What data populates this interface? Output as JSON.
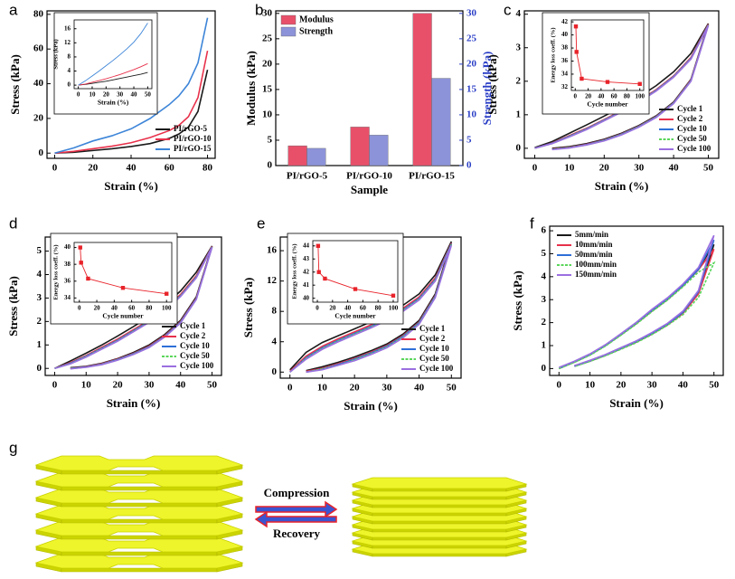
{
  "chart_data": [
    {
      "type": "line",
      "panel_label": "a",
      "xlabel": "Strain (%)",
      "ylabel": "Stress (kPa)",
      "xlim": [
        -4,
        84
      ],
      "ylim": [
        -3,
        82
      ],
      "xticks": [
        0,
        20,
        40,
        60,
        80
      ],
      "yticks": [
        0,
        20,
        40,
        60,
        80
      ],
      "legend": "lower right",
      "x": [
        0,
        10,
        20,
        30,
        40,
        50,
        60,
        65,
        70,
        75,
        80
      ],
      "series": [
        {
          "name": "PI/rGO-5",
          "color": "#1a1a1a",
          "values": [
            0,
            0.5,
            1.5,
            2.5,
            3.8,
            5.5,
            8.5,
            11,
            15,
            24,
            48
          ]
        },
        {
          "name": "PI/rGO-10",
          "color": "#e8314b",
          "values": [
            0,
            1,
            2.5,
            4,
            6,
            9,
            13,
            16,
            21,
            32,
            59
          ]
        },
        {
          "name": "PI/rGO-15",
          "color": "#3d85d8",
          "values": [
            0,
            3,
            7,
            10,
            14,
            20,
            28,
            33,
            40,
            52,
            78
          ]
        }
      ],
      "inset": {
        "type": "line",
        "xlabel": "Strain (%)",
        "ylabel": "Stress (kPa)",
        "xlim": [
          -3,
          53
        ],
        "ylim": [
          -1,
          18.5
        ],
        "xticks": [
          0,
          10,
          20,
          30,
          40,
          50
        ],
        "yticks": [
          0,
          4,
          8,
          12,
          16
        ],
        "x": [
          0,
          5,
          10,
          15,
          20,
          25,
          30,
          35,
          40,
          45,
          50
        ],
        "series": [
          {
            "color": "#1a1a1a",
            "values": [
              0,
              0.2,
              0.5,
              0.8,
              1.1,
              1.5,
              1.9,
              2.3,
              2.7,
              3.1,
              3.6
            ]
          },
          {
            "color": "#e8314b",
            "values": [
              0,
              0.3,
              0.8,
              1.3,
              1.8,
              2.4,
              3.0,
              3.7,
              4.4,
              5.2,
              6.1
            ]
          },
          {
            "color": "#3d85d8",
            "values": [
              0,
              1.2,
              2.6,
              4.0,
              5.5,
              7.0,
              8.6,
              10.3,
              12.2,
              14.6,
              17.6
            ]
          }
        ]
      }
    },
    {
      "type": "bar",
      "panel_label": "b",
      "xlabel": "Sample",
      "ylabel": "Modulus (kPa)",
      "y2label": "Strength (kPa)",
      "y2_color": "#2b3fc6",
      "legend": "upper left",
      "categories": [
        "PI/rGO-5",
        "PI/rGO-10",
        "PI/rGO-15"
      ],
      "ylim": [
        0,
        30.5
      ],
      "yticks": [
        0,
        5,
        10,
        15,
        20,
        25,
        30
      ],
      "y2lim": [
        0,
        30.5
      ],
      "y2ticks": [
        0,
        5,
        10,
        15,
        20,
        25,
        30
      ],
      "series": [
        {
          "name": "Modulus",
          "color": "#e8506a",
          "values": [
            3.9,
            7.6,
            30.0
          ]
        },
        {
          "name": "Strength",
          "color": "#8d93d8",
          "axis": "y2",
          "values": [
            3.4,
            6.0,
            17.2
          ]
        }
      ]
    },
    {
      "type": "line",
      "panel_label": "c",
      "xlabel": "Strain (%)",
      "ylabel": "Stress (kPa)",
      "xlim": [
        -3,
        53
      ],
      "ylim": [
        -0.3,
        4.1
      ],
      "xticks": [
        0,
        10,
        20,
        30,
        40,
        50
      ],
      "yticks": [
        0,
        1,
        2,
        3,
        4
      ],
      "legend": "lower right",
      "x": [
        0,
        5,
        10,
        15,
        20,
        25,
        30,
        35,
        40,
        45,
        50,
        45,
        40,
        35,
        30,
        25,
        20,
        15,
        10,
        5
      ],
      "series": [
        {
          "name": "Cycle 1",
          "color": "#1a1a1a",
          "values": [
            0.02,
            0.2,
            0.45,
            0.7,
            0.96,
            1.23,
            1.53,
            1.87,
            2.28,
            2.83,
            3.72,
            2.06,
            1.38,
            0.97,
            0.68,
            0.45,
            0.27,
            0.14,
            0.05,
            0
          ]
        },
        {
          "name": "Cycle 2",
          "color": "#e8314b",
          "values": [
            0,
            0.16,
            0.38,
            0.6,
            0.86,
            1.12,
            1.42,
            1.75,
            2.16,
            2.71,
            3.7,
            2.04,
            1.36,
            0.95,
            0.66,
            0.43,
            0.25,
            0.12,
            0.03,
            -0.02
          ]
        },
        {
          "name": "Cycle 10",
          "color": "#2e6fd8",
          "values": [
            0,
            0.15,
            0.36,
            0.58,
            0.84,
            1.1,
            1.4,
            1.73,
            2.14,
            2.68,
            3.68,
            2.02,
            1.35,
            0.94,
            0.65,
            0.42,
            0.24,
            0.11,
            0.02,
            -0.03
          ]
        },
        {
          "name": "Cycle 50",
          "color": "#5ad65a",
          "dashed": true,
          "values": [
            0,
            0.14,
            0.35,
            0.57,
            0.83,
            1.09,
            1.39,
            1.72,
            2.13,
            2.67,
            3.67,
            2.01,
            1.34,
            0.93,
            0.64,
            0.41,
            0.23,
            0.1,
            0.02,
            -0.03
          ]
        },
        {
          "name": "Cycle 100",
          "color": "#9b6fe0",
          "values": [
            0,
            0.14,
            0.34,
            0.56,
            0.82,
            1.08,
            1.38,
            1.71,
            2.12,
            2.66,
            3.66,
            2.0,
            1.33,
            0.92,
            0.63,
            0.4,
            0.22,
            0.1,
            0.01,
            -0.04
          ]
        }
      ],
      "inset": {
        "type": "line",
        "xlabel": "Cycle number",
        "ylabel": "Energy loss coeff. (%)",
        "markers": true,
        "xlim": [
          -6,
          106
        ],
        "ylim": [
          31.5,
          42.3
        ],
        "xticks": [
          0,
          20,
          40,
          60,
          80,
          100
        ],
        "yticks": [
          32,
          34,
          36,
          38,
          40,
          42
        ],
        "x": [
          1,
          2,
          10,
          50,
          100
        ],
        "series": [
          {
            "color": "#e8232a",
            "values": [
              41.3,
              37.4,
              33.3,
              32.8,
              32.5
            ]
          }
        ]
      }
    },
    {
      "type": "line",
      "panel_label": "d",
      "xlabel": "Strain (%)",
      "ylabel": "Stress (kPa)",
      "xlim": [
        -3,
        53
      ],
      "ylim": [
        -0.3,
        5.6
      ],
      "xticks": [
        0,
        10,
        20,
        30,
        40,
        50
      ],
      "yticks": [
        0,
        1,
        2,
        3,
        4,
        5
      ],
      "legend": "lower right",
      "x": [
        0,
        5,
        10,
        15,
        20,
        25,
        30,
        35,
        40,
        45,
        50,
        45,
        40,
        35,
        30,
        25,
        20,
        15,
        10,
        5
      ],
      "series": [
        {
          "name": "Cycle 1",
          "color": "#1a1a1a",
          "values": [
            0,
            0.32,
            0.65,
            1.0,
            1.38,
            1.78,
            2.2,
            2.7,
            3.3,
            4.1,
            5.22,
            3.05,
            2.05,
            1.45,
            1.0,
            0.68,
            0.42,
            0.22,
            0.09,
            0.03
          ]
        },
        {
          "name": "Cycle 2",
          "color": "#e8314b",
          "values": [
            0,
            0.25,
            0.55,
            0.9,
            1.25,
            1.65,
            2.05,
            2.55,
            3.15,
            3.95,
            5.2,
            3.0,
            2.0,
            1.4,
            0.95,
            0.64,
            0.4,
            0.2,
            0.07,
            0.01
          ]
        },
        {
          "name": "Cycle 10",
          "color": "#2e6fd8",
          "values": [
            0,
            0.22,
            0.52,
            0.86,
            1.2,
            1.6,
            2.0,
            2.5,
            3.1,
            3.9,
            5.18,
            2.97,
            1.97,
            1.37,
            0.92,
            0.62,
            0.38,
            0.18,
            0.06,
            0
          ]
        },
        {
          "name": "Cycle 50",
          "color": "#5ad65a",
          "dashed": true,
          "values": [
            0,
            0.2,
            0.5,
            0.84,
            1.18,
            1.58,
            1.98,
            2.48,
            3.08,
            3.88,
            5.17,
            2.95,
            1.95,
            1.35,
            0.9,
            0.6,
            0.36,
            0.17,
            0.05,
            -0.01
          ]
        },
        {
          "name": "Cycle 100",
          "color": "#9b6fe0",
          "values": [
            0,
            0.19,
            0.48,
            0.82,
            1.16,
            1.56,
            1.96,
            2.46,
            3.06,
            3.86,
            5.16,
            2.94,
            1.94,
            1.34,
            0.89,
            0.59,
            0.35,
            0.16,
            0.05,
            -0.02
          ]
        }
      ],
      "inset": {
        "type": "line",
        "xlabel": "Cycle number",
        "ylabel": "Energy loss coeff. (%)",
        "markers": true,
        "xlim": [
          -6,
          106
        ],
        "ylim": [
          33.5,
          40.6
        ],
        "xticks": [
          0,
          20,
          40,
          60,
          80,
          100
        ],
        "yticks": [
          34,
          36,
          38,
          40
        ],
        "x": [
          1,
          2,
          10,
          50,
          100
        ],
        "series": [
          {
            "color": "#e8232a",
            "values": [
              40.0,
              38.2,
              36.3,
              35.2,
              34.5
            ]
          }
        ]
      }
    },
    {
      "type": "line",
      "panel_label": "e",
      "xlabel": "Strain (%)",
      "ylabel": "Stress (kPa)",
      "xlim": [
        -3,
        53
      ],
      "ylim": [
        -0.8,
        17.8
      ],
      "xticks": [
        0,
        10,
        20,
        30,
        40,
        50
      ],
      "yticks": [
        0,
        4,
        8,
        12,
        16
      ],
      "legend": "lower right",
      "x": [
        0,
        5,
        10,
        15,
        20,
        25,
        30,
        35,
        40,
        45,
        50,
        45,
        40,
        35,
        30,
        25,
        20,
        15,
        10,
        5
      ],
      "series": [
        {
          "name": "Cycle 1",
          "color": "#1a1a1a",
          "values": [
            0.3,
            2.6,
            3.9,
            4.8,
            5.7,
            6.6,
            7.6,
            8.8,
            10.3,
            12.8,
            17.2,
            10.3,
            6.8,
            5.0,
            3.7,
            2.8,
            2.0,
            1.3,
            0.7,
            0.2
          ]
        },
        {
          "name": "Cycle 2",
          "color": "#e8314b",
          "values": [
            0.1,
            2.1,
            3.4,
            4.4,
            5.3,
            6.2,
            7.2,
            8.4,
            9.9,
            12.4,
            17.0,
            10.1,
            6.6,
            4.8,
            3.5,
            2.6,
            1.8,
            1.1,
            0.5,
            0.1
          ]
        },
        {
          "name": "Cycle 10",
          "color": "#2e6fd8",
          "values": [
            0,
            1.9,
            3.2,
            4.2,
            5.1,
            6.0,
            7.0,
            8.2,
            9.7,
            12.2,
            16.9,
            10.0,
            6.5,
            4.7,
            3.4,
            2.5,
            1.7,
            1.0,
            0.4,
            0
          ]
        },
        {
          "name": "Cycle 50",
          "color": "#5ad65a",
          "dashed": true,
          "values": [
            0,
            1.8,
            3.1,
            4.1,
            5.0,
            5.9,
            6.9,
            8.1,
            9.6,
            12.1,
            16.8,
            9.9,
            6.4,
            4.6,
            3.3,
            2.4,
            1.6,
            0.9,
            0.4,
            0
          ]
        },
        {
          "name": "Cycle 100",
          "color": "#9b6fe0",
          "values": [
            0,
            1.7,
            3.0,
            4.0,
            4.9,
            5.8,
            6.8,
            8.0,
            9.5,
            12.0,
            16.7,
            9.8,
            6.3,
            4.5,
            3.2,
            2.3,
            1.5,
            0.9,
            0.3,
            0
          ]
        }
      ],
      "inset": {
        "type": "line",
        "xlabel": "Cycle number",
        "ylabel": "Energy loss coeff. (%)",
        "markers": true,
        "xlim": [
          -6,
          106
        ],
        "ylim": [
          39.7,
          44.4
        ],
        "xticks": [
          0,
          20,
          40,
          60,
          80,
          100
        ],
        "yticks": [
          40,
          41,
          42,
          43,
          44
        ],
        "x": [
          1,
          2,
          10,
          50,
          100
        ],
        "series": [
          {
            "color": "#e8232a",
            "values": [
              44.0,
              42.0,
              41.5,
              40.7,
              40.2
            ]
          }
        ]
      }
    },
    {
      "type": "line",
      "panel_label": "f",
      "xlabel": "Strain (%)",
      "ylabel": "Stress (kPa)",
      "xlim": [
        -3,
        53
      ],
      "ylim": [
        -0.3,
        6.2
      ],
      "xticks": [
        0,
        10,
        20,
        30,
        40,
        50
      ],
      "yticks": [
        0,
        1,
        2,
        3,
        4,
        5,
        6
      ],
      "legend": "upper left",
      "x": [
        0,
        5,
        10,
        15,
        20,
        25,
        30,
        35,
        40,
        45,
        50,
        45,
        40,
        35,
        30,
        25,
        20,
        15,
        10,
        5
      ],
      "series": [
        {
          "name": "5mm/min",
          "color": "#1a1a1a",
          "values": [
            0,
            0.3,
            0.62,
            1.02,
            1.5,
            2.0,
            2.55,
            3.05,
            3.65,
            4.35,
            5.4,
            3.3,
            2.45,
            1.95,
            1.55,
            1.2,
            0.9,
            0.6,
            0.35,
            0.12
          ]
        },
        {
          "name": "10mm/min",
          "color": "#e8314b",
          "values": [
            0,
            0.28,
            0.6,
            1.0,
            1.47,
            1.96,
            2.5,
            3.0,
            3.6,
            4.3,
            5.2,
            3.25,
            2.4,
            1.9,
            1.5,
            1.15,
            0.86,
            0.57,
            0.32,
            0.1
          ]
        },
        {
          "name": "50mm/min",
          "color": "#2e6fd8",
          "values": [
            0,
            0.29,
            0.6,
            1.0,
            1.48,
            1.98,
            2.52,
            3.02,
            3.62,
            4.32,
            5.6,
            3.35,
            2.45,
            1.92,
            1.52,
            1.17,
            0.87,
            0.58,
            0.33,
            0.1
          ]
        },
        {
          "name": "100mm/min",
          "color": "#5ad65a",
          "dashed": true,
          "values": [
            0,
            0.27,
            0.58,
            0.98,
            1.45,
            1.94,
            2.48,
            2.98,
            3.56,
            4.2,
            4.6,
            3.1,
            2.35,
            1.88,
            1.48,
            1.13,
            0.84,
            0.56,
            0.31,
            0.09
          ]
        },
        {
          "name": "150mm/min",
          "color": "#9b6fe0",
          "values": [
            0.05,
            0.32,
            0.64,
            1.04,
            1.52,
            2.02,
            2.58,
            3.08,
            3.68,
            4.4,
            5.8,
            3.4,
            2.5,
            1.97,
            1.57,
            1.21,
            0.91,
            0.61,
            0.36,
            0.13
          ]
        }
      ]
    }
  ],
  "diagram": {
    "panel_label": "g",
    "forward": "Compression",
    "backward": "Recovery"
  }
}
